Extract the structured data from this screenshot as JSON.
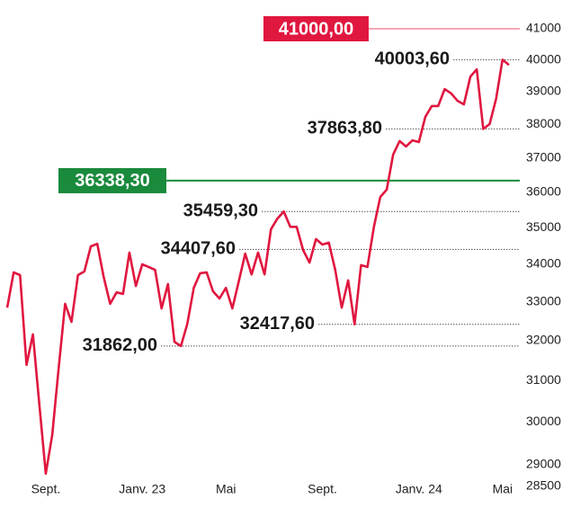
{
  "chart_data": {
    "type": "line",
    "log_scale": true,
    "categories": [
      null,
      null,
      null,
      null,
      null,
      null,
      "Sept.",
      null,
      null,
      null,
      null,
      null,
      null,
      null,
      null,
      null,
      null,
      null,
      null,
      null,
      null,
      "Janv. 23",
      null,
      null,
      null,
      null,
      null,
      null,
      null,
      null,
      null,
      null,
      null,
      null,
      "Mai",
      null,
      null,
      null,
      null,
      null,
      null,
      null,
      null,
      null,
      null,
      null,
      null,
      null,
      null,
      "Sept.",
      null,
      null,
      null,
      null,
      null,
      null,
      null,
      null,
      null,
      null,
      null,
      null,
      null,
      null,
      "Janv. 24",
      null,
      null,
      null,
      null,
      null,
      null,
      null,
      null,
      null,
      null,
      null,
      null,
      "Mai",
      null
    ],
    "series": [
      {
        "name": null,
        "color": "#e0173f",
        "values": [
          32850,
          33785,
          33710,
          31390,
          32160,
          30410,
          28790,
          29690,
          31300,
          32950,
          32480,
          33710,
          33810,
          34490,
          34560,
          33660,
          32950,
          33250,
          33210,
          34320,
          33420,
          34000,
          33930,
          33850,
          32830,
          33470,
          31970,
          31862,
          32430,
          33370,
          33760,
          33785,
          33280,
          33090,
          33370,
          32830,
          33540,
          34290,
          33730,
          34320,
          33730,
          34960,
          35260,
          35459.3,
          35030,
          35030,
          34390,
          34050,
          34690,
          34540,
          34590,
          33850,
          32850,
          33570,
          32417.6,
          33980,
          33930,
          35030,
          35870,
          36080,
          37100,
          37500,
          37340,
          37520,
          37470,
          38230,
          38560,
          38560,
          39080,
          38950,
          38720,
          38610,
          39470,
          39700,
          37863.8,
          38010,
          38780,
          40003.6,
          39840
        ]
      }
    ],
    "ylim": [
      28500,
      41000
    ],
    "yticks": [
      28500,
      29000,
      30000,
      31000,
      32000,
      33000,
      34000,
      35000,
      36000,
      37000,
      38000,
      39000,
      40000,
      41000
    ],
    "reference_lines": [
      {
        "value": 41000,
        "label": "41000,00",
        "color": "#e0173f",
        "line_color": "#f08a9c"
      },
      {
        "value": 36338.3,
        "label": "36338,30",
        "color": "#1a8a3c",
        "line_color": "#1a8a3c"
      }
    ],
    "annotations": [
      {
        "value": 40003.6,
        "label": "40003,60"
      },
      {
        "value": 37863.8,
        "label": "37863,80"
      },
      {
        "value": 35459.3,
        "label": "35459,30"
      },
      {
        "value": 34407.6,
        "label": "34407,60"
      },
      {
        "value": 32417.6,
        "label": "32417,60"
      },
      {
        "value": 31862,
        "label": "31862,00"
      }
    ]
  }
}
